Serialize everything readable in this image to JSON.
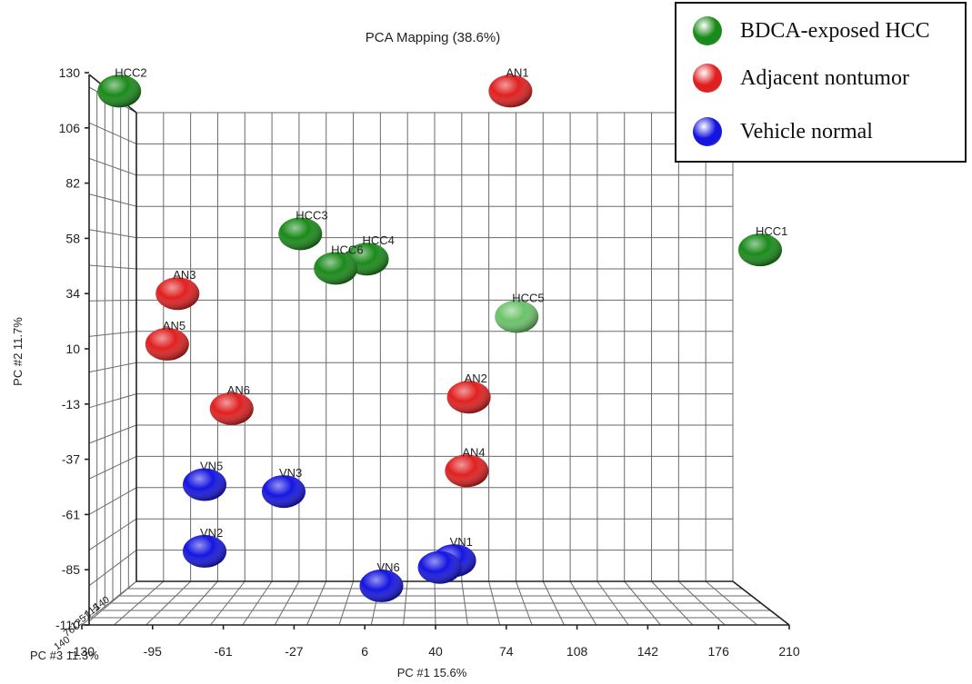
{
  "chart_data": {
    "type": "scatter",
    "title": "PCA Mapping (38.6%)",
    "xlabel": "PC #1 15.6%",
    "ylabel": "PC #2 11.7%",
    "zlabel": "PC #3 11.3%",
    "xlim": [
      -130,
      210
    ],
    "ylim": [
      -110,
      130
    ],
    "x_ticks": [
      "-130",
      "-95",
      "-61",
      "-27",
      "6",
      "40",
      "74",
      "108",
      "142",
      "176",
      "210"
    ],
    "y_ticks": [
      "130",
      "106",
      "82",
      "58",
      "34",
      "10",
      "-13",
      "-37",
      "-61",
      "-85",
      "-110"
    ],
    "z_ticks": [
      "140",
      "76",
      "12",
      "-51",
      "-115",
      "-140"
    ],
    "grid": true,
    "legend_position": "top-right",
    "series": [
      {
        "name": "BDCA-exposed HCC",
        "color": "#1a8a1a",
        "points": [
          {
            "label": "HCC1",
            "x": 196,
            "y": 53
          },
          {
            "label": "HCC2",
            "x": -112,
            "y": 122
          },
          {
            "label": "HCC3",
            "x": -25,
            "y": 60
          },
          {
            "label": "HCC4",
            "x": 7,
            "y": 49
          },
          {
            "label": "HCC6",
            "x": -8,
            "y": 45
          },
          {
            "label": "HCC5",
            "x": 79,
            "y": 24,
            "color": "#6bc26b"
          }
        ]
      },
      {
        "name": "Adjacent nontumor",
        "color": "#e02020",
        "points": [
          {
            "label": "AN1",
            "x": 76,
            "y": 122
          },
          {
            "label": "AN2",
            "x": 56,
            "y": -11
          },
          {
            "label": "AN3",
            "x": -84,
            "y": 34
          },
          {
            "label": "AN4",
            "x": 55,
            "y": -43
          },
          {
            "label": "AN5",
            "x": -89,
            "y": 12
          },
          {
            "label": "AN6",
            "x": -58,
            "y": -16
          }
        ]
      },
      {
        "name": "Vehicle normal",
        "color": "#1515e0",
        "points": [
          {
            "label": "VN1",
            "x": 49,
            "y": -82
          },
          {
            "label": "VN2",
            "x": -71,
            "y": -78
          },
          {
            "label": "VN3",
            "x": -33,
            "y": -52
          },
          {
            "label": "VN5",
            "x": -71,
            "y": -49
          },
          {
            "label": "VN6",
            "x": 14,
            "y": -93
          },
          {
            "label": "",
            "x": 42,
            "y": -85
          }
        ]
      }
    ]
  }
}
